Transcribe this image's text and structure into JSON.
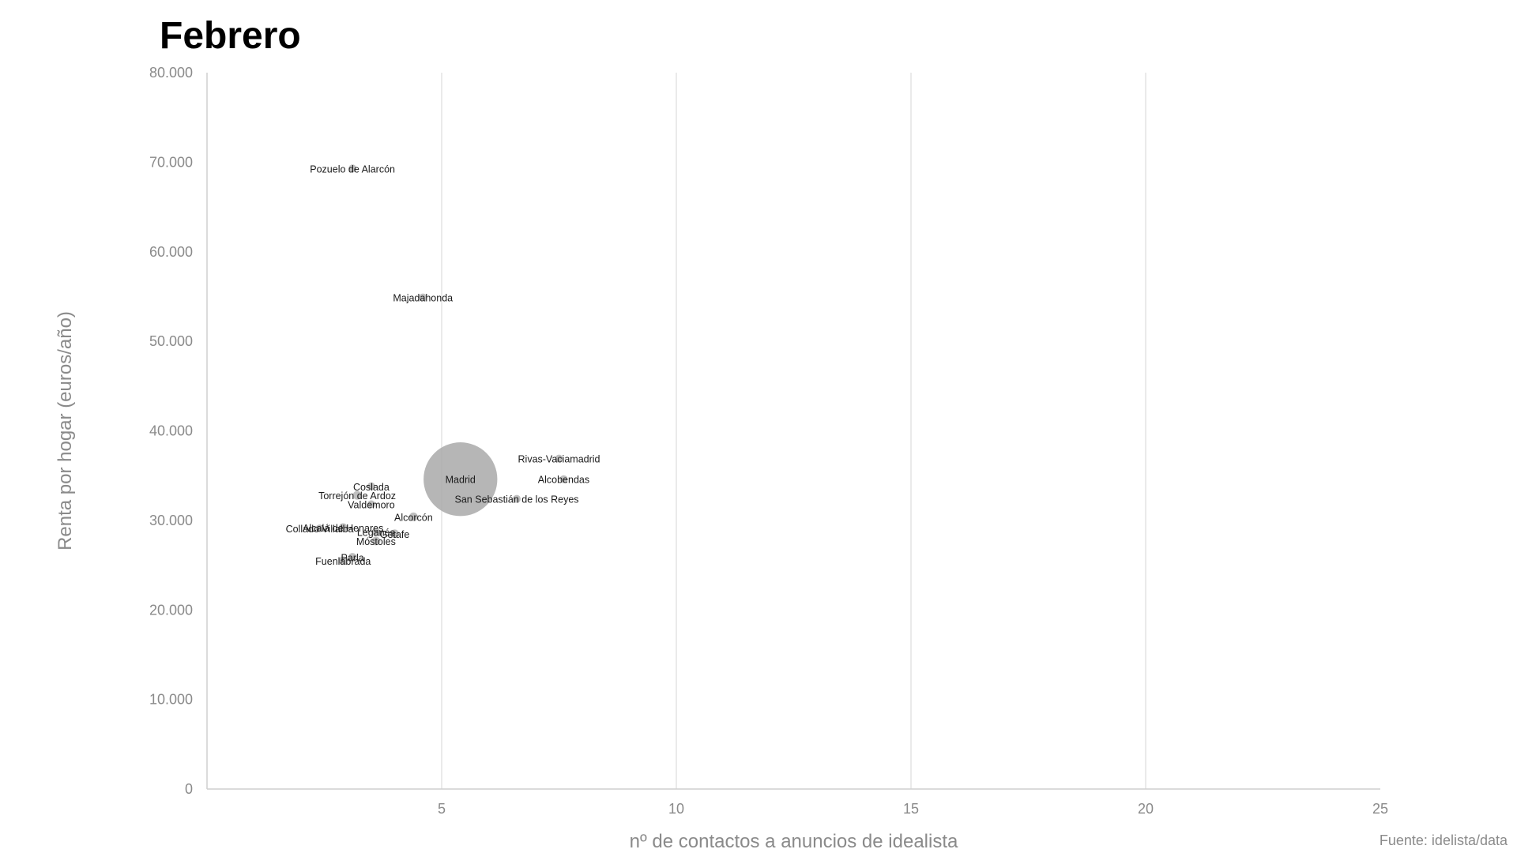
{
  "title": "Febrero",
  "source": "Fuente: idelista/data",
  "chart_data": {
    "type": "scatter",
    "title": "Febrero",
    "xlabel": "nº de contactos a anuncios de idealista",
    "ylabel": "Renta por hogar (euros/año)",
    "xlim": [
      0,
      25
    ],
    "ylim": [
      0,
      80000
    ],
    "x_ticks": [
      "5",
      "10",
      "15",
      "20",
      "25"
    ],
    "y_ticks": [
      "0",
      "10.000",
      "20.000",
      "30.000",
      "40.000",
      "50.000",
      "60.000",
      "70.000",
      "80.000"
    ],
    "grid": "vertical",
    "legend": "none",
    "point_color": "#a9a9a9",
    "points": [
      {
        "label": "Pozuelo de Alarcón",
        "x": 3.1,
        "y": 69300,
        "size": 1
      },
      {
        "label": "Majadahonda",
        "x": 4.6,
        "y": 54900,
        "size": 1
      },
      {
        "label": "Rivas-Vaciamadrid",
        "x": 7.5,
        "y": 36900,
        "size": 1
      },
      {
        "label": "Alcobendas",
        "x": 7.6,
        "y": 34600,
        "size": 1
      },
      {
        "label": "Madrid",
        "x": 5.4,
        "y": 34600,
        "size": 18
      },
      {
        "label": "San Sebastián de los Reyes",
        "x": 6.6,
        "y": 32400,
        "size": 1
      },
      {
        "label": "Coslada",
        "x": 3.5,
        "y": 33800,
        "size": 1
      },
      {
        "label": "Torrejón de Ardoz",
        "x": 3.2,
        "y": 32800,
        "size": 1.2
      },
      {
        "label": "Valdemoro",
        "x": 3.5,
        "y": 31800,
        "size": 1
      },
      {
        "label": "Alcorcón",
        "x": 4.4,
        "y": 30400,
        "size": 1.2
      },
      {
        "label": "Alcalá de Henares",
        "x": 2.9,
        "y": 29200,
        "size": 1.2
      },
      {
        "label": "Collado Villalba",
        "x": 2.4,
        "y": 29100,
        "size": 1
      },
      {
        "label": "Leganés",
        "x": 3.6,
        "y": 28700,
        "size": 1.1
      },
      {
        "label": "Getafe",
        "x": 4.0,
        "y": 28500,
        "size": 1.2
      },
      {
        "label": "Móstoles",
        "x": 3.6,
        "y": 27700,
        "size": 1.2
      },
      {
        "label": "Parla",
        "x": 3.1,
        "y": 25900,
        "size": 1.1
      },
      {
        "label": "Fuenlabrada",
        "x": 2.9,
        "y": 25500,
        "size": 1.2
      }
    ]
  }
}
